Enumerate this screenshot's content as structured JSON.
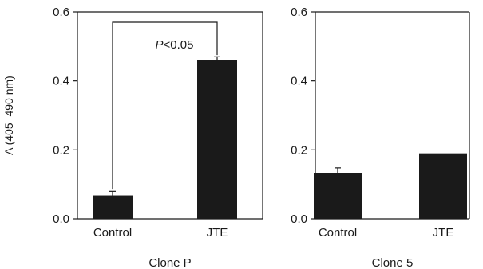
{
  "chart_data": [
    {
      "type": "bar",
      "panel_label": "Clone P",
      "ylabel": "A (405–490 nm)",
      "ylim": [
        0,
        0.6
      ],
      "yticks": [
        0.0,
        0.2,
        0.4,
        0.6
      ],
      "ytick_labels": [
        "0.0",
        "0.2",
        "0.4",
        "0.6"
      ],
      "categories": [
        "Control",
        "JTE"
      ],
      "values": [
        0.068,
        0.46
      ],
      "errors": [
        0.012,
        0.01
      ],
      "bar_color": "#1a1a1a",
      "grid": false,
      "significance": {
        "between": [
          0,
          1
        ],
        "label_italic": "P",
        "label_rest": "<0.05",
        "bracket_top": 0.57,
        "left_end": 0.085,
        "right_end": 0.475
      }
    },
    {
      "type": "bar",
      "panel_label": "Clone 5",
      "ylabel": "",
      "ylim": [
        0,
        0.6
      ],
      "yticks": [
        0.0,
        0.2,
        0.4,
        0.6
      ],
      "ytick_labels": [
        "0.0",
        "0.2",
        "0.4",
        "0.6"
      ],
      "categories": [
        "Control",
        "JTE"
      ],
      "values": [
        0.133,
        0.19
      ],
      "errors": [
        0.015,
        0.0
      ],
      "bar_color": "#1a1a1a",
      "grid": false
    }
  ]
}
